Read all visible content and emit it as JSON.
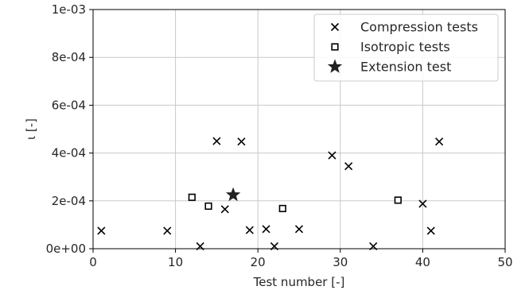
{
  "chart_data": {
    "type": "scatter",
    "xlabel": "Test number [-]",
    "ylabel": "ι [-]",
    "xlim": [
      0,
      50
    ],
    "ylim": [
      0,
      0.001
    ],
    "xticks": [
      0,
      10,
      20,
      30,
      40,
      50
    ],
    "xtick_labels": [
      "0",
      "10",
      "20",
      "30",
      "40",
      "50"
    ],
    "yticks": [
      0,
      0.0002,
      0.0004,
      0.0006,
      0.0008,
      0.001
    ],
    "ytick_labels": [
      "0e+00",
      "2e-04",
      "4e-04",
      "6e-04",
      "8e-04",
      "1e-03"
    ],
    "grid": true,
    "legend_position": "top-right",
    "series": [
      {
        "name": "Compression tests",
        "marker": "x",
        "color": "#000000",
        "points": [
          [
            1,
            7.5e-05
          ],
          [
            9,
            7.5e-05
          ],
          [
            13,
            1e-05
          ],
          [
            15,
            0.00045
          ],
          [
            16,
            0.000165
          ],
          [
            18,
            0.000448
          ],
          [
            19,
            7.8e-05
          ],
          [
            21,
            8.2e-05
          ],
          [
            22,
            1e-05
          ],
          [
            25,
            8.2e-05
          ],
          [
            29,
            0.00039
          ],
          [
            31,
            0.000345
          ],
          [
            34,
            1e-05
          ],
          [
            40,
            0.000188
          ],
          [
            41,
            7.5e-05
          ],
          [
            42,
            0.000448
          ]
        ]
      },
      {
        "name": "Isotropic tests",
        "marker": "square",
        "color": "#000000",
        "points": [
          [
            12,
            0.000215
          ],
          [
            14,
            0.000178
          ],
          [
            23,
            0.000168
          ],
          [
            37,
            0.000203
          ]
        ]
      },
      {
        "name": "Extension test",
        "marker": "star",
        "color": "#222222",
        "points": [
          [
            17,
            0.000225
          ]
        ]
      }
    ]
  }
}
